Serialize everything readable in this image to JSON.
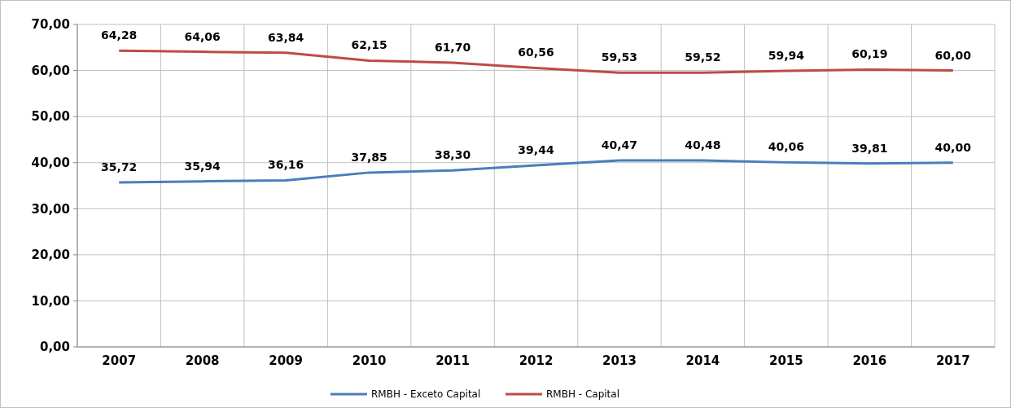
{
  "chart_data": {
    "type": "line",
    "categories": [
      "2007",
      "2008",
      "2009",
      "2010",
      "2011",
      "2012",
      "2013",
      "2014",
      "2015",
      "2016",
      "2017"
    ],
    "series": [
      {
        "name": "RMBH - Exceto Capital",
        "color": "#4a7ebb",
        "values": [
          35.72,
          35.94,
          36.16,
          37.85,
          38.3,
          39.44,
          40.47,
          40.48,
          40.06,
          39.81,
          40.0
        ],
        "value_labels": [
          "35,72",
          "35,94",
          "36,16",
          "37,85",
          "38,30",
          "39,44",
          "40,47",
          "40,48",
          "40,06",
          "39,81",
          "40,00"
        ]
      },
      {
        "name": "RMBH - Capital",
        "color": "#be4b48",
        "values": [
          64.28,
          64.06,
          63.84,
          62.15,
          61.7,
          60.56,
          59.53,
          59.52,
          59.94,
          60.19,
          60.0
        ],
        "value_labels": [
          "64,28",
          "64,06",
          "63,84",
          "62,15",
          "61,70",
          "60,56",
          "59,53",
          "59,52",
          "59,94",
          "60,19",
          "60,00"
        ]
      }
    ],
    "ylim": [
      0,
      70
    ],
    "yticks": [
      {
        "value": 0,
        "label": "0,00"
      },
      {
        "value": 10,
        "label": "10,00"
      },
      {
        "value": 20,
        "label": "20,00"
      },
      {
        "value": 30,
        "label": "30,00"
      },
      {
        "value": 40,
        "label": "40,00"
      },
      {
        "value": 50,
        "label": "50,00"
      },
      {
        "value": 60,
        "label": "60,00"
      },
      {
        "value": 70,
        "label": "70,00"
      }
    ],
    "grid": true,
    "legend": "bottom",
    "marker": "none",
    "line_style": "solid"
  }
}
